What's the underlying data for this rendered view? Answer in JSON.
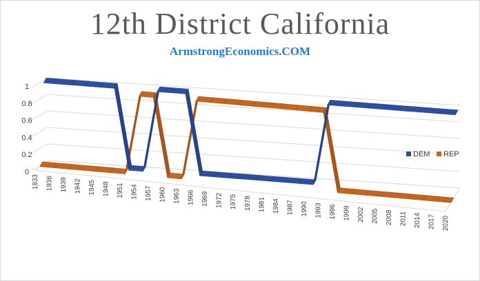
{
  "chart_data": {
    "type": "line",
    "style": "3d-ribbon",
    "title": "12th District California",
    "subtitle": "ArmstrongEconomics.COM",
    "xlabel": "",
    "ylabel": "",
    "ylim": [
      0,
      1
    ],
    "yticks": [
      0,
      0.2,
      0.4,
      0.6,
      0.8,
      1
    ],
    "grid": true,
    "legend_position": "right",
    "categories": [
      "1933",
      "1936",
      "1939",
      "1942",
      "1945",
      "1948",
      "1951",
      "1954",
      "1957",
      "1960",
      "1963",
      "1966",
      "1969",
      "1972",
      "1975",
      "1978",
      "1981",
      "1984",
      "1987",
      "1990",
      "1993",
      "1996",
      "1999",
      "2002",
      "2005",
      "2008",
      "2011",
      "2014",
      "2017",
      "2020"
    ],
    "series": [
      {
        "name": "DEM",
        "color": "#2e4fa1",
        "values": [
          1,
          1,
          1,
          1,
          1,
          1,
          0,
          0,
          1,
          1,
          1,
          0,
          0,
          0,
          0,
          0,
          0,
          0,
          0,
          0,
          1,
          1,
          1,
          1,
          1,
          1,
          1,
          1,
          1,
          1
        ]
      },
      {
        "name": "REP",
        "color": "#c4661f",
        "values": [
          0,
          0,
          0,
          0,
          0,
          0,
          0,
          1,
          1,
          0,
          0,
          1,
          1,
          1,
          1,
          1,
          1,
          1,
          1,
          1,
          1,
          0,
          0,
          0,
          0,
          0,
          0,
          0,
          0,
          0
        ]
      }
    ]
  }
}
